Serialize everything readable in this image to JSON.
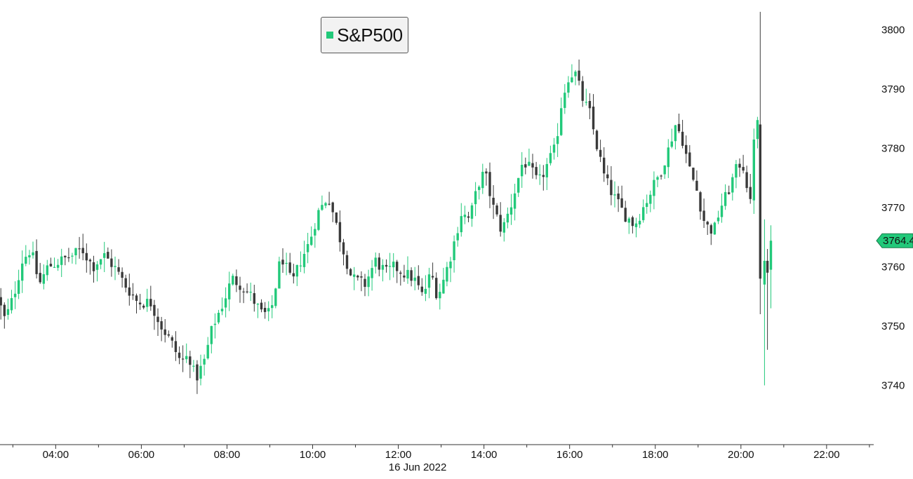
{
  "colors": {
    "up": "#22c97a",
    "down": "#3a3a3a",
    "axis": "#333333",
    "last_price_tag": "#22c97a"
  },
  "chart_data": {
    "type": "candlestick",
    "title": "",
    "legend": {
      "label": "S&P500",
      "placement": "top-center"
    },
    "date_label": "16 Jun 2022",
    "x_range_hours": [
      2.7,
      23.1
    ],
    "x_ticks": [
      {
        "h": 4,
        "label": "04:00"
      },
      {
        "h": 6,
        "label": "06:00"
      },
      {
        "h": 8,
        "label": "08:00"
      },
      {
        "h": 10,
        "label": "10:00"
      },
      {
        "h": 12,
        "label": "12:00"
      },
      {
        "h": 14,
        "label": "14:00"
      },
      {
        "h": 16,
        "label": "16:00"
      },
      {
        "h": 18,
        "label": "18:00"
      },
      {
        "h": 20,
        "label": "20:00"
      },
      {
        "h": 22,
        "label": "22:00"
      }
    ],
    "minor_tick_hours": [
      3,
      5,
      7,
      9,
      11,
      13,
      15,
      17,
      19,
      21,
      23
    ],
    "ylim": [
      3730,
      3805
    ],
    "y_ticks": [
      3740,
      3750,
      3760,
      3770,
      3780,
      3790,
      3800
    ],
    "y_position": "right",
    "last_price": {
      "value": 3764.4,
      "label": "3764.4"
    },
    "anchors": [
      [
        2.72,
        3755
      ],
      [
        2.9,
        3751
      ],
      [
        3.1,
        3755
      ],
      [
        3.3,
        3761
      ],
      [
        3.5,
        3763
      ],
      [
        3.7,
        3757
      ],
      [
        3.9,
        3760
      ],
      [
        4.2,
        3761
      ],
      [
        4.5,
        3762
      ],
      [
        4.7,
        3763
      ],
      [
        4.95,
        3760
      ],
      [
        5.2,
        3762
      ],
      [
        5.45,
        3760
      ],
      [
        5.7,
        3757
      ],
      [
        6.0,
        3754
      ],
      [
        6.3,
        3754
      ],
      [
        6.55,
        3750
      ],
      [
        6.8,
        3747
      ],
      [
        7.0,
        3744
      ],
      [
        7.2,
        3745
      ],
      [
        7.35,
        3741
      ],
      [
        7.55,
        3744
      ],
      [
        7.75,
        3750
      ],
      [
        8.0,
        3754
      ],
      [
        8.2,
        3758
      ],
      [
        8.4,
        3757
      ],
      [
        8.65,
        3755
      ],
      [
        8.9,
        3752
      ],
      [
        9.1,
        3752
      ],
      [
        9.35,
        3762
      ],
      [
        9.6,
        3757
      ],
      [
        9.8,
        3761
      ],
      [
        10.0,
        3764
      ],
      [
        10.2,
        3769
      ],
      [
        10.45,
        3772
      ],
      [
        10.6,
        3768
      ],
      [
        10.75,
        3764
      ],
      [
        11.0,
        3758
      ],
      [
        11.3,
        3757
      ],
      [
        11.55,
        3761
      ],
      [
        11.8,
        3759
      ],
      [
        12.0,
        3760
      ],
      [
        12.2,
        3759
      ],
      [
        12.45,
        3758
      ],
      [
        12.65,
        3755
      ],
      [
        12.85,
        3759
      ],
      [
        13.0,
        3755
      ],
      [
        13.15,
        3758
      ],
      [
        13.35,
        3763
      ],
      [
        13.55,
        3769
      ],
      [
        13.75,
        3768
      ],
      [
        13.95,
        3774
      ],
      [
        14.1,
        3776
      ],
      [
        14.3,
        3770
      ],
      [
        14.5,
        3766
      ],
      [
        14.7,
        3770
      ],
      [
        14.85,
        3774
      ],
      [
        15.0,
        3778
      ],
      [
        15.2,
        3776
      ],
      [
        15.35,
        3774
      ],
      [
        15.55,
        3777
      ],
      [
        15.75,
        3780
      ],
      [
        15.9,
        3788
      ],
      [
        16.05,
        3792
      ],
      [
        16.2,
        3793
      ],
      [
        16.4,
        3788
      ],
      [
        16.55,
        3786
      ],
      [
        16.7,
        3781
      ],
      [
        16.9,
        3775
      ],
      [
        17.1,
        3772
      ],
      [
        17.35,
        3769
      ],
      [
        17.6,
        3767
      ],
      [
        17.8,
        3770
      ],
      [
        18.0,
        3773
      ],
      [
        18.2,
        3776
      ],
      [
        18.4,
        3780
      ],
      [
        18.55,
        3784
      ],
      [
        18.7,
        3782
      ],
      [
        18.9,
        3776
      ],
      [
        19.05,
        3773
      ],
      [
        19.25,
        3767
      ],
      [
        19.45,
        3766
      ],
      [
        19.6,
        3770
      ],
      [
        19.75,
        3772
      ],
      [
        19.95,
        3776
      ],
      [
        20.1,
        3778
      ],
      [
        20.2,
        3775
      ],
      [
        20.3,
        3770
      ],
      [
        20.4,
        3784
      ]
    ],
    "tail_candles": [
      {
        "h": 20.45,
        "open": 3784,
        "close": 3758,
        "high": 3803,
        "low": 3752
      },
      {
        "h": 20.55,
        "open": 3757,
        "close": 3761,
        "high": 3768,
        "low": 3740
      },
      {
        "h": 20.62,
        "open": 3761,
        "close": 3759,
        "high": 3763,
        "low": 3746
      },
      {
        "h": 20.7,
        "open": 3759.5,
        "close": 3764.4,
        "high": 3767,
        "low": 3753
      }
    ]
  }
}
